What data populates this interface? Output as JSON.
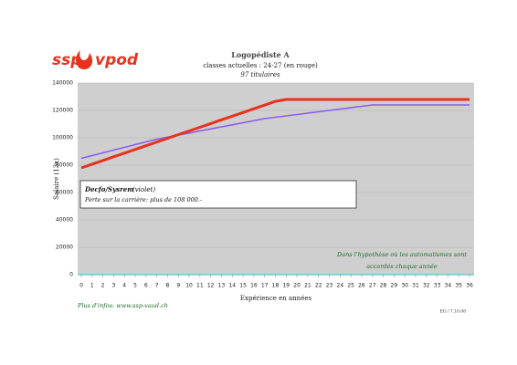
{
  "logo": {
    "left": "ssp",
    "right": "vpod"
  },
  "chart_data": {
    "type": "line",
    "title": "Logopédiste A",
    "subtitle": "classes actuelles : 24-27 (en rouge)",
    "subtitle2": "97 titulaires",
    "y_label": "Salaire (13x)",
    "x_label": "Expérience en années",
    "x": [
      0,
      1,
      2,
      3,
      4,
      5,
      6,
      7,
      8,
      9,
      10,
      11,
      12,
      13,
      14,
      15,
      16,
      17,
      18,
      19,
      20,
      21,
      22,
      23,
      24,
      25,
      26,
      27,
      28,
      29,
      30,
      31,
      32,
      33,
      34,
      35,
      36
    ],
    "series": [
      {
        "color": "#8a5cf0",
        "values": [
          85000,
          87000,
          89000,
          91000,
          93000,
          95000,
          97000,
          99000,
          100500,
          102000,
          103500,
          105000,
          106500,
          108000,
          109500,
          111000,
          112500,
          114000,
          115000,
          116000,
          117000,
          118000,
          119000,
          120000,
          121000,
          122000,
          123000,
          124000,
          124000,
          124000,
          124000,
          124000,
          124000,
          124000,
          124000,
          124000,
          124000
        ]
      },
      {
        "color": "#e8321e",
        "values": [
          78000,
          80700,
          83400,
          86100,
          88800,
          91500,
          94200,
          96900,
          99600,
          102300,
          105000,
          107700,
          110400,
          113100,
          115800,
          118500,
          121200,
          123900,
          126600,
          128000,
          128000,
          128000,
          128000,
          128000,
          128000,
          128000,
          128000,
          128000,
          128000,
          128000,
          128000,
          128000,
          128000,
          128000,
          128000,
          128000,
          128000
        ]
      }
    ],
    "ylim": [
      0,
      140000
    ],
    "yticks": [
      0,
      20000,
      40000,
      60000,
      80000,
      100000,
      120000,
      140000
    ],
    "grid": true,
    "box": {
      "title": "Decfo/Sysrem",
      "title_note": "(violet)",
      "text": "Perte sur la carrière: plus de 108 000.-"
    },
    "annotation": [
      "Dans l'hypothèse où les automatismes sont",
      "accordés chaque année"
    ]
  },
  "footer": {
    "link": "Plus d'infos: www.ssp-vaud.ch",
    "ref": "EG / 7.10.08"
  }
}
